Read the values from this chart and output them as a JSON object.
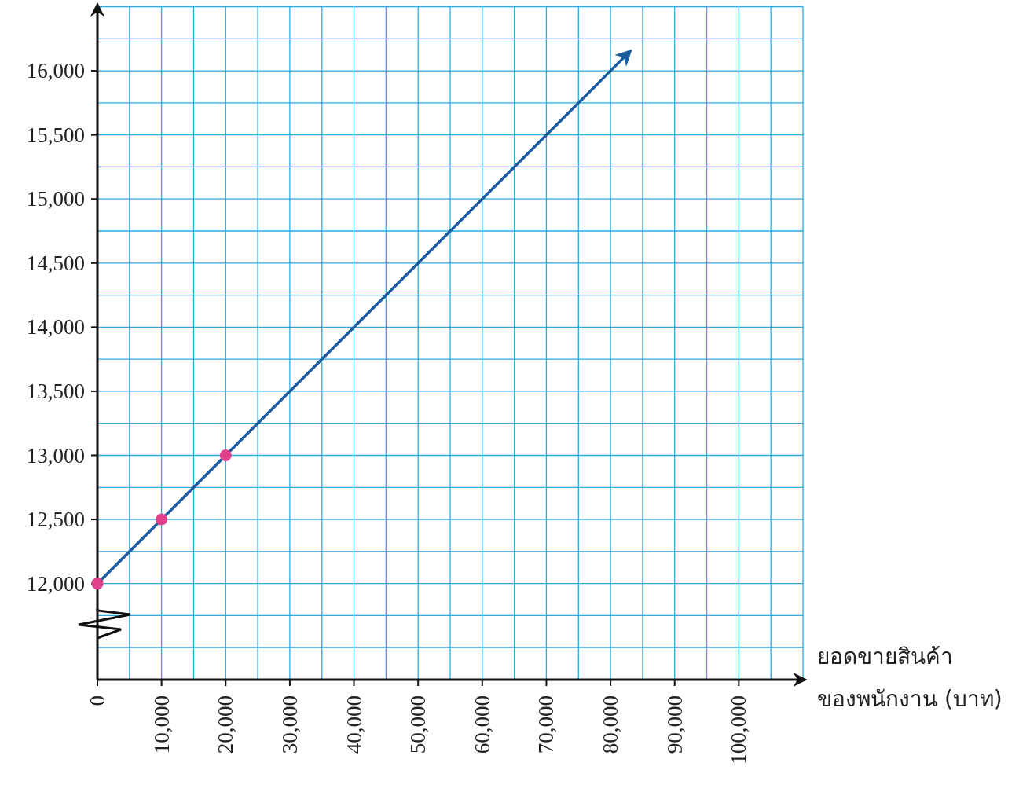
{
  "chart_data": {
    "type": "scatter",
    "xlabel": "ยอดขายสินค้า\nของพนักงาน (บาท)",
    "series": [
      {
        "type": "line",
        "color": "#1a5c9e",
        "x": [
          0,
          83000
        ],
        "values": [
          12000,
          16150
        ],
        "marker": "none"
      },
      {
        "type": "scatter",
        "color": "#e0408c",
        "x": [
          0,
          10000,
          20000
        ],
        "values": [
          12000,
          12500,
          13000
        ],
        "marker": "circle"
      }
    ],
    "xlim": [
      0,
      110000
    ],
    "ylim": [
      11250,
      16500
    ],
    "xticks": [
      0,
      {
        "value": 5000,
        "label": null
      },
      {
        "value": 10000,
        "label": "10,000"
      },
      {
        "value": 15000,
        "label": null
      },
      {
        "value": 20000,
        "label": "20,000"
      },
      {
        "value": 25000,
        "label": null
      },
      {
        "value": 30000,
        "label": "30,000"
      },
      {
        "value": 35000,
        "label": null
      },
      {
        "value": 40000,
        "label": "40,000"
      },
      {
        "value": 45000,
        "label": null
      },
      {
        "value": 50000,
        "label": "50,000"
      },
      {
        "value": 55000,
        "label": null
      },
      {
        "value": 60000,
        "label": "60,000"
      },
      {
        "value": 65000,
        "label": null
      },
      {
        "value": 70000,
        "label": "70,000"
      },
      {
        "value": 75000,
        "label": null
      },
      {
        "value": 80000,
        "label": "80,000"
      },
      {
        "value": 85000,
        "label": null
      },
      {
        "value": 90000,
        "label": "90,000"
      },
      {
        "value": 95000,
        "label": null
      },
      {
        "value": 100000,
        "label": "100,000"
      },
      {
        "value": 105000,
        "label": null
      },
      {
        "value": 110000,
        "label": null
      }
    ],
    "yticks": [
      {
        "value": 11500,
        "label": null
      },
      {
        "value": 11750,
        "label": null
      },
      {
        "value": 12000,
        "label": "12,000"
      },
      {
        "value": 12250,
        "label": null
      },
      {
        "value": 12500,
        "label": "12,500"
      },
      {
        "value": 12750,
        "label": null
      },
      {
        "value": 13000,
        "label": "13,000"
      },
      {
        "value": 13250,
        "label": null
      },
      {
        "value": 13500,
        "label": "13,500"
      },
      {
        "value": 13750,
        "label": null
      },
      {
        "value": 14000,
        "label": "14,000"
      },
      {
        "value": 14250,
        "label": null
      },
      {
        "value": 14500,
        "label": "14,500"
      },
      {
        "value": 14750,
        "label": null
      },
      {
        "value": 15000,
        "label": "15,000"
      },
      {
        "value": 15250,
        "label": null
      },
      {
        "value": 15500,
        "label": "15,500"
      },
      {
        "value": 15750,
        "label": null
      },
      {
        "value": 16000,
        "label": "16,000"
      },
      {
        "value": 16250,
        "label": null
      },
      {
        "value": 16500,
        "label": null
      }
    ],
    "grid": true
  }
}
